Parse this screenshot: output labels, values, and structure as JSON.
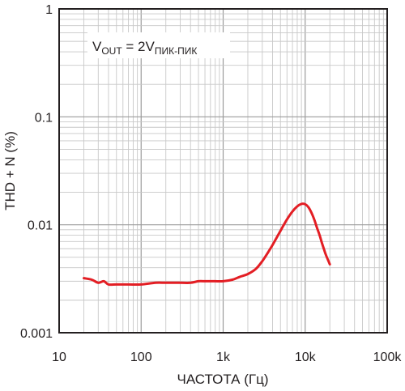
{
  "chart_data": {
    "type": "line",
    "xlabel": "ЧАСТОТА (Гц)",
    "ylabel": "THD + N (%)",
    "xscale": "log",
    "yscale": "log",
    "xlim": [
      10,
      100000
    ],
    "ylim": [
      0.001,
      1
    ],
    "grid": true,
    "x_ticks": [
      10,
      100,
      1000,
      10000,
      100000
    ],
    "x_tick_labels": [
      "10",
      "100",
      "1k",
      "10k",
      "100k"
    ],
    "y_ticks": [
      0.001,
      0.01,
      0.1,
      1
    ],
    "y_tick_labels": [
      "0.001",
      "0.01",
      "0.1",
      "1"
    ],
    "annotation": {
      "main": "V",
      "sub1": "OUT",
      "mid": " = 2V",
      "sub2": "ПИК-ПИК"
    },
    "series_color": "#e31e24",
    "series": [
      {
        "x": [
          20,
          25,
          30,
          35,
          40,
          50,
          70,
          100,
          150,
          200,
          300,
          400,
          500,
          600,
          700,
          800,
          1000,
          1300,
          1600,
          2000,
          2500,
          3000,
          3500,
          4000,
          5000,
          6000,
          7000,
          8000,
          9000,
          10000,
          11000,
          12000,
          13000,
          14000,
          15000,
          16000,
          17000,
          18000,
          20000
        ],
        "y": [
          0.0032,
          0.0031,
          0.0029,
          0.003,
          0.0028,
          0.0028,
          0.0028,
          0.0028,
          0.0029,
          0.0029,
          0.0029,
          0.0029,
          0.003,
          0.003,
          0.003,
          0.003,
          0.003,
          0.0031,
          0.0033,
          0.0035,
          0.0039,
          0.0046,
          0.0055,
          0.0065,
          0.0088,
          0.0112,
          0.0133,
          0.0148,
          0.0156,
          0.0155,
          0.0145,
          0.0128,
          0.011,
          0.0093,
          0.008,
          0.0068,
          0.0059,
          0.0052,
          0.0043
        ]
      }
    ]
  }
}
